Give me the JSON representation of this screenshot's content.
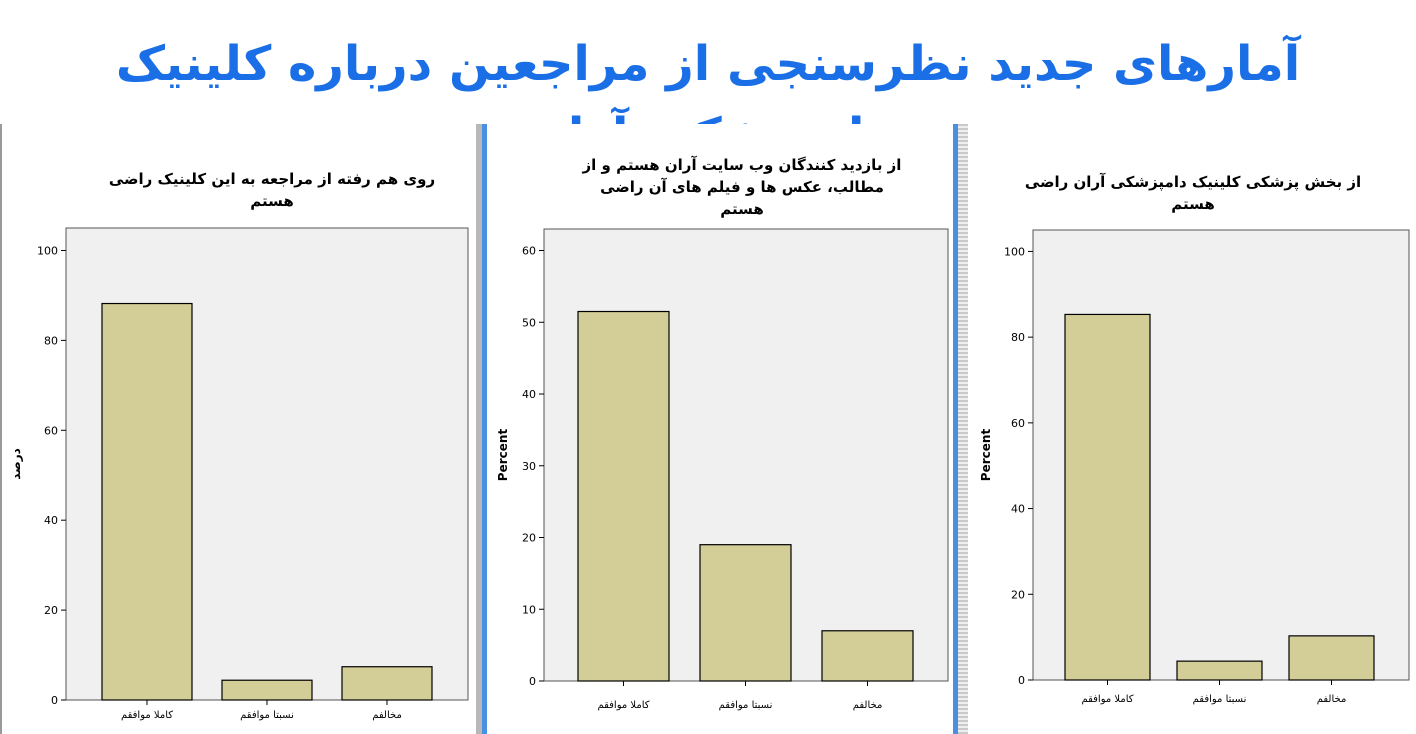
{
  "page": {
    "title": "آمارهای جدید نظرسنجی از مراجعین درباره کلینیک دامپزشکی آران"
  },
  "chart_data": [
    {
      "type": "bar",
      "title": "روی هم رفته از مراجعه به این کلینیک راضی هستم",
      "ylabel": "درصد",
      "xlabel": "",
      "categories": [
        "كاملا موافقم",
        "نسبتا موافقم",
        "مخالفم"
      ],
      "values": [
        88.2,
        4.4,
        7.4
      ],
      "ylim": [
        0,
        105
      ],
      "yticks": [
        0,
        20,
        40,
        60,
        80,
        100
      ],
      "grid": false,
      "colors": {
        "bar": "#d3cd97",
        "plot_bg": "#f0f0f0",
        "stroke": "#000000"
      }
    },
    {
      "type": "bar",
      "title": "از بازدید کنندگان وب سایت آران هستم و از مطالب، عکس ها و فیلم های آن راضی هستم",
      "ylabel": "Percent",
      "xlabel": "",
      "categories": [
        "كاملا موافقم",
        "نسبتا موافقم",
        "مخالفم"
      ],
      "values": [
        51.5,
        19.0,
        7.0
      ],
      "ylim": [
        0,
        63
      ],
      "yticks": [
        0,
        10,
        20,
        30,
        40,
        50,
        60
      ],
      "grid": false,
      "colors": {
        "bar": "#d3cd97",
        "plot_bg": "#f0f0f0",
        "stroke": "#000000"
      }
    },
    {
      "type": "bar",
      "title": "از بخش پزشکی کلینیک دامپزشکی آران راضی هستم",
      "ylabel": "Percent",
      "xlabel": "",
      "categories": [
        "كاملا موافقم",
        "نسبتا موافقم",
        "مخالفم"
      ],
      "values": [
        85.3,
        4.4,
        10.3
      ],
      "ylim": [
        0,
        105
      ],
      "yticks": [
        0,
        20,
        40,
        60,
        80,
        100
      ],
      "grid": false,
      "colors": {
        "bar": "#d3cd97",
        "plot_bg": "#f0f0f0",
        "stroke": "#000000"
      }
    }
  ]
}
